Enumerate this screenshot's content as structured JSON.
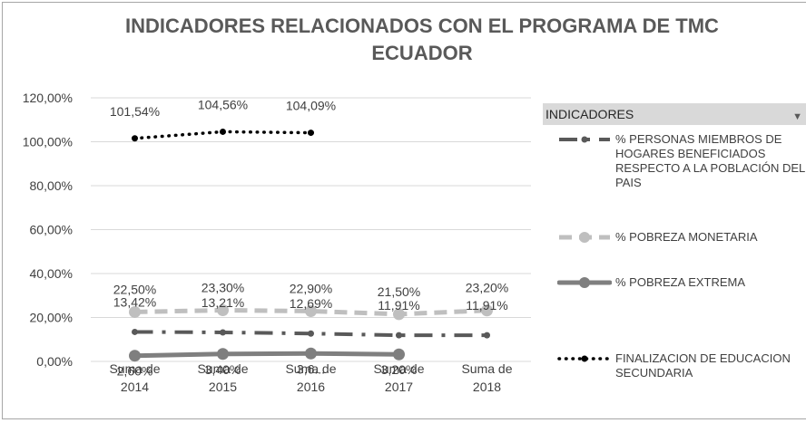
{
  "chart_data": {
    "type": "line",
    "title": "INDICADORES RELACIONADOS CON EL PROGRAMA DE TMC ECUADOR",
    "legend_title": "INDICADORES",
    "legend": "right",
    "grid": true,
    "categories": [
      "Suma de 2014",
      "Suma de 2015",
      "Suma de 2016",
      "Suma de 2017",
      "Suma de 2018"
    ],
    "ylim": [
      0,
      120
    ],
    "yticks": [
      {
        "value": 0,
        "label": "0,00%"
      },
      {
        "value": 20,
        "label": "20,00%"
      },
      {
        "value": 40,
        "label": "40,00%"
      },
      {
        "value": 60,
        "label": "60,00%"
      },
      {
        "value": 80,
        "label": "80,00%"
      },
      {
        "value": 100,
        "label": "100,00%"
      },
      {
        "value": 120,
        "label": "120,00%"
      }
    ],
    "series": [
      {
        "name": "% PERSONAS MIEMBROS DE HOGARES BENEFICIADOS RESPECTO A LA POBLACIÓN DEL PAIS",
        "color": "#595959",
        "dash": "dash-dot",
        "marker": "none",
        "values": [
          13.42,
          13.21,
          12.69,
          11.91,
          11.91
        ],
        "value_labels": [
          "13,42%",
          "13,21%",
          "12,69%",
          "11,91%",
          "11,91%"
        ]
      },
      {
        "name": "% POBREZA MONETARIA",
        "color": "#bfbfbf",
        "dash": "dash",
        "marker": "circle",
        "values": [
          22.5,
          23.3,
          22.9,
          21.5,
          23.2
        ],
        "value_labels": [
          "22,50%",
          "23,30%",
          "22,90%",
          "21,50%",
          "23,20%"
        ]
      },
      {
        "name": "% POBREZA EXTREMA",
        "color": "#7f7f7f",
        "dash": "solid",
        "marker": "circle",
        "values": [
          2.6,
          3.4,
          3.6,
          3.2,
          null
        ],
        "value_labels": [
          "2,60%",
          "3,40%",
          "3,6...",
          "3,20%",
          null
        ]
      },
      {
        "name": "FINALIZACION DE EDUCACION SECUNDARIA",
        "color": "#000000",
        "dash": "dot",
        "marker": "none",
        "values": [
          101.54,
          104.56,
          104.09,
          null,
          null
        ],
        "value_labels": [
          "101,54%",
          "104,56%",
          "104,09%",
          null,
          null
        ]
      }
    ]
  }
}
